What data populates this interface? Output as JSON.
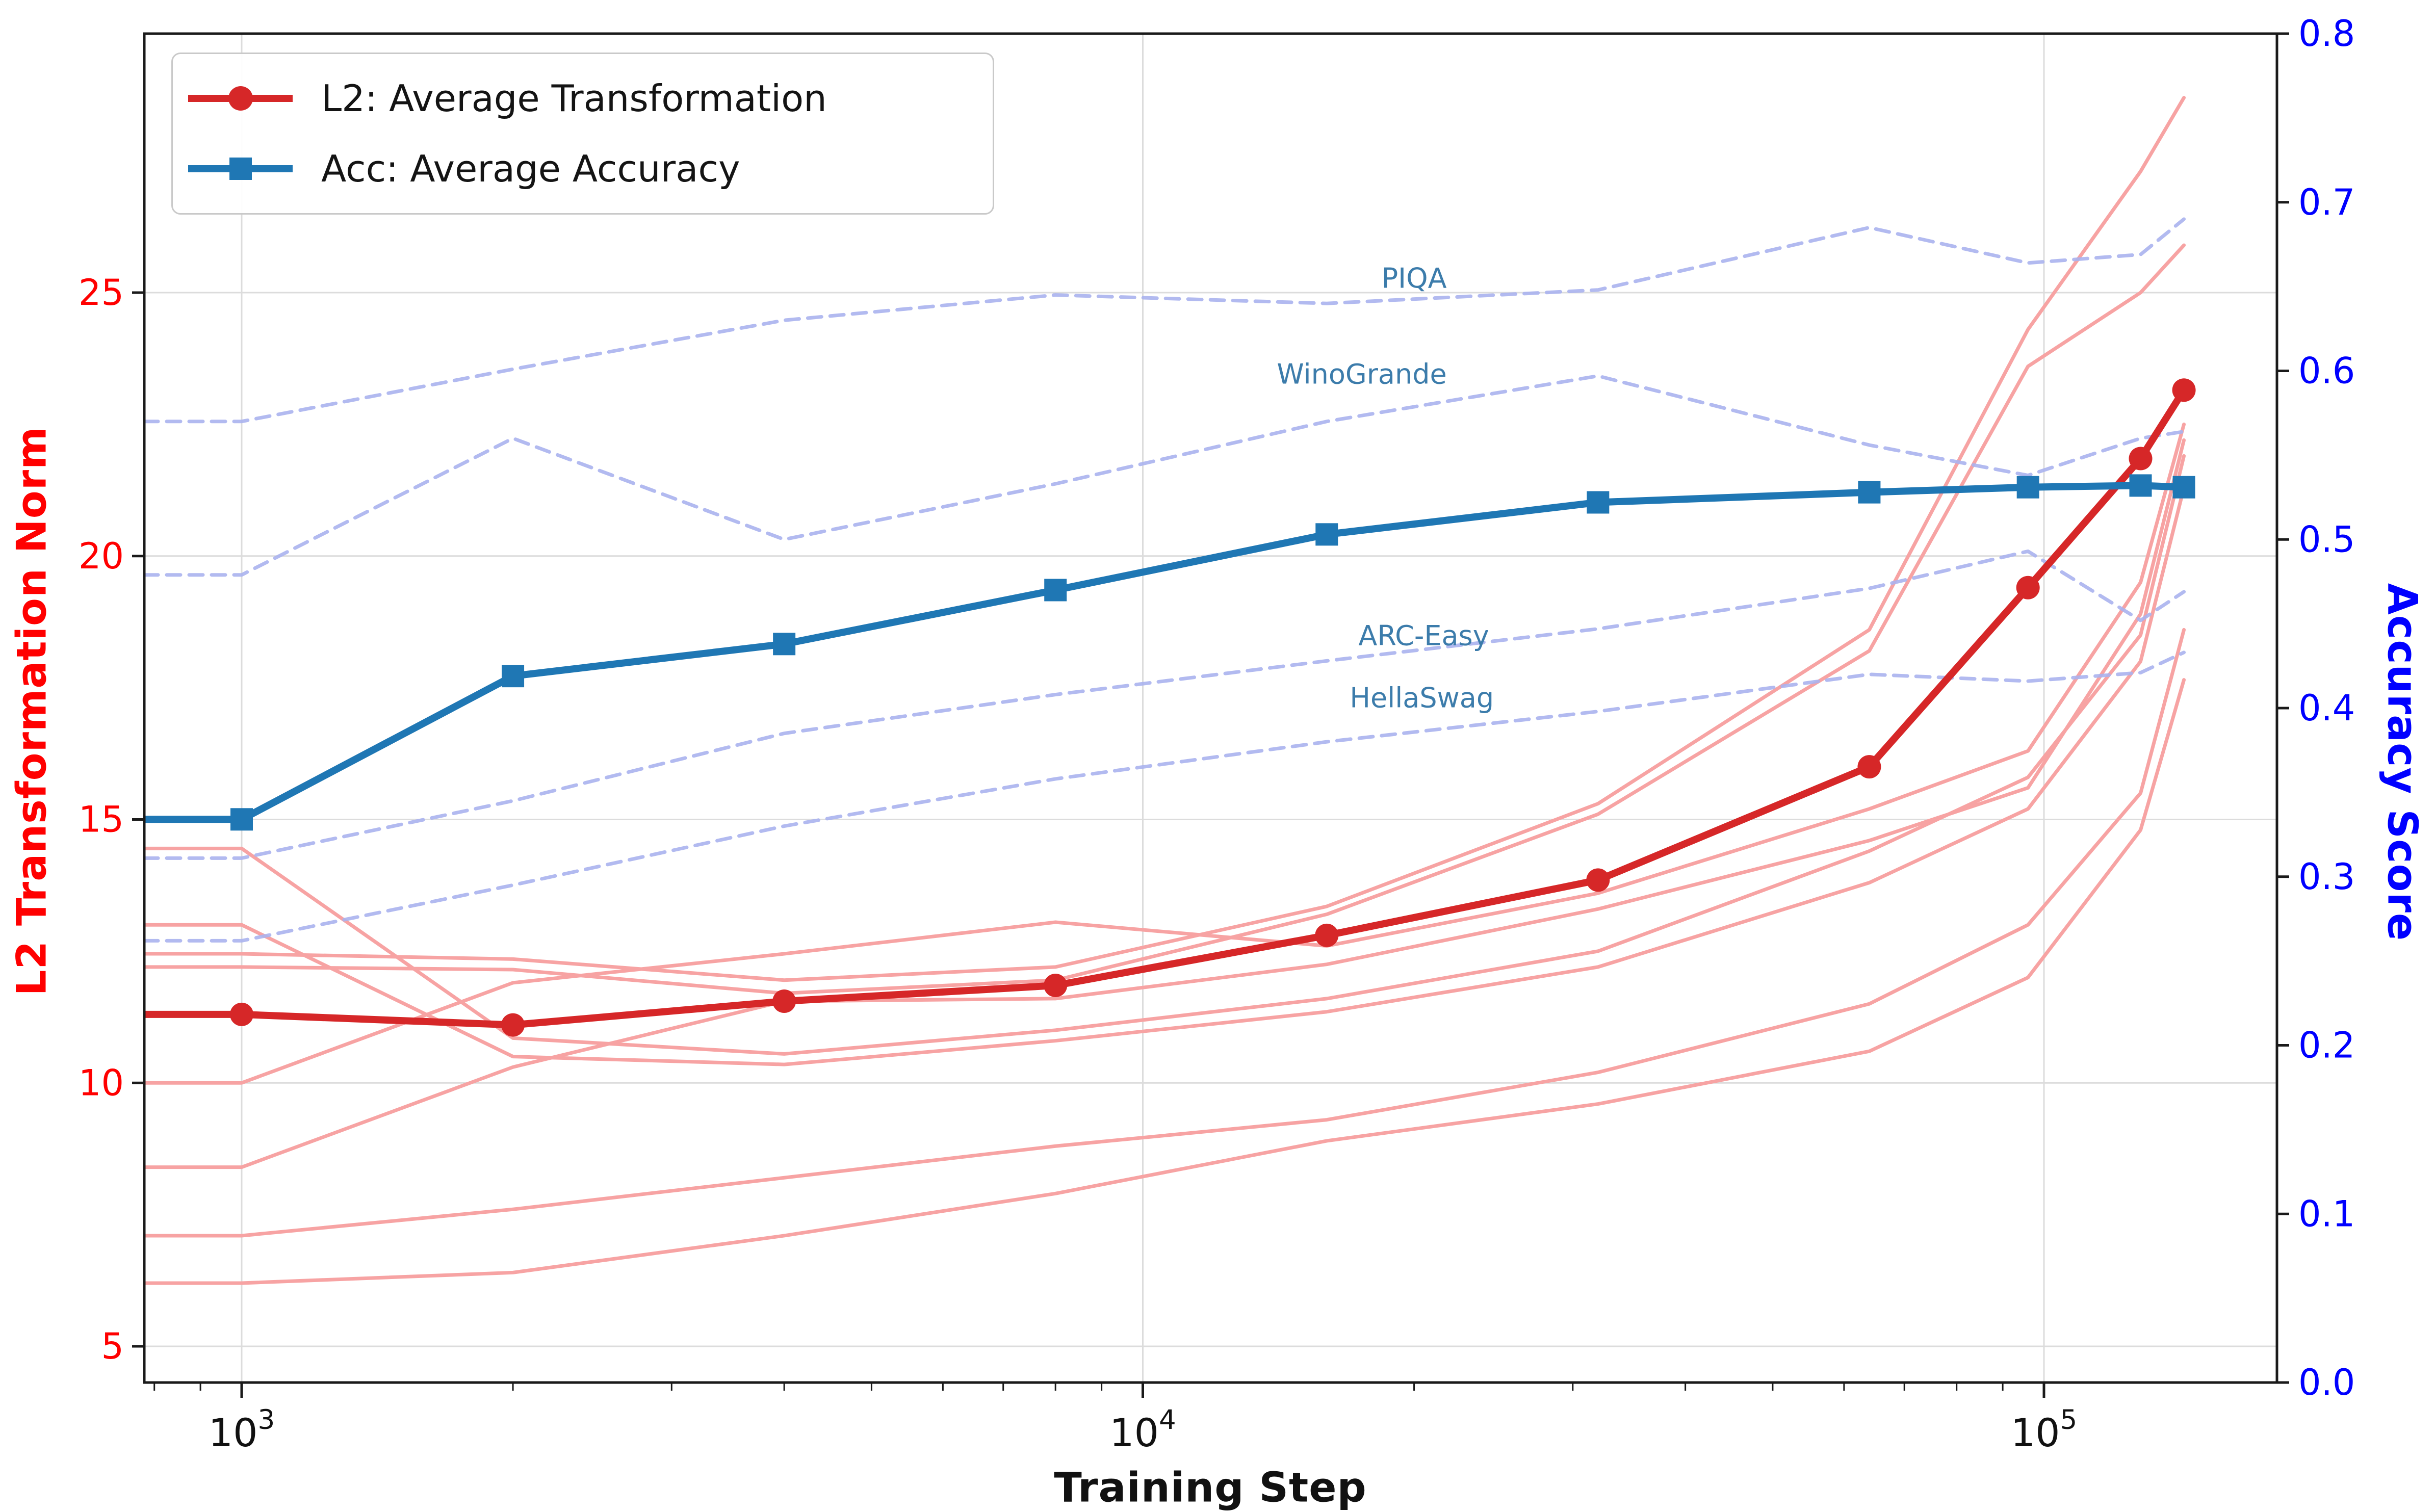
{
  "chart_data": {
    "type": "line",
    "xlabel": "Training Step",
    "ylabel_left": "L2 Transformation Norm",
    "ylabel_right": "Accuracy Score",
    "x_scale": "log",
    "x_major_ticks": [
      {
        "step": 1000,
        "base": "10",
        "exp": "3"
      },
      {
        "step": 10000,
        "base": "10",
        "exp": "4"
      },
      {
        "step": 100000,
        "base": "10",
        "exp": "5"
      }
    ],
    "x_minor_ticks": [
      800,
      900,
      2000,
      3000,
      4000,
      5000,
      6000,
      7000,
      8000,
      9000,
      20000,
      30000,
      40000,
      50000,
      60000,
      70000,
      80000,
      90000
    ],
    "y_left_ticks": [
      5,
      10,
      15,
      20,
      25
    ],
    "y_left_lim": [
      4.3,
      29.9
    ],
    "y_right_ticks": [
      "0.0",
      "0.1",
      "0.2",
      "0.3",
      "0.4",
      "0.5",
      "0.6",
      "0.7",
      "0.8"
    ],
    "y_right_lim": [
      0.0,
      0.8
    ],
    "x_lim_steps": [
      780,
      182000
    ],
    "grid": true,
    "legend_position": "upper left",
    "steps": [
      1000,
      2000,
      4000,
      8000,
      16000,
      32000,
      64000,
      96000,
      128000,
      143000
    ],
    "series": [
      {
        "name": "L2: Average Transformation",
        "axis": "left",
        "style": "solid",
        "marker": "circle",
        "values": [
          11.3,
          11.1,
          11.55,
          11.85,
          12.8,
          13.85,
          16.0,
          19.4,
          21.85,
          23.15
        ]
      },
      {
        "name": "Acc: Average Accuracy",
        "axis": "right",
        "style": "solid",
        "marker": "square",
        "values": [
          0.334,
          0.419,
          0.438,
          0.47,
          0.503,
          0.522,
          0.528,
          0.531,
          0.532,
          0.531
        ]
      },
      {
        "name": "PIQA",
        "axis": "right",
        "style": "dashed",
        "values": [
          0.57,
          0.601,
          0.63,
          0.645,
          0.64,
          0.648,
          0.685,
          0.664,
          0.669,
          0.69
        ],
        "label_at": {
          "step": 20000,
          "acc": 0.655
        }
      },
      {
        "name": "WinoGrande",
        "axis": "right",
        "style": "dashed",
        "values": [
          0.479,
          0.56,
          0.5,
          0.533,
          0.57,
          0.597,
          0.556,
          0.538,
          0.56,
          0.564
        ],
        "label_at": {
          "step": 17500,
          "acc": 0.598
        }
      },
      {
        "name": "ARC-Easy",
        "axis": "right",
        "style": "dashed",
        "values": [
          0.311,
          0.345,
          0.385,
          0.408,
          0.428,
          0.447,
          0.471,
          0.493,
          0.452,
          0.469
        ],
        "label_at": {
          "step": 20500,
          "acc": 0.443
        }
      },
      {
        "name": "HellaSwag",
        "axis": "right",
        "style": "dashed",
        "values": [
          0.262,
          0.295,
          0.33,
          0.358,
          0.38,
          0.398,
          0.42,
          0.416,
          0.421,
          0.433
        ],
        "label_at": {
          "step": 20400,
          "acc": 0.406
        }
      },
      {
        "name": "individual-l2-1",
        "axis": "left",
        "style": "pink",
        "values": [
          14.45,
          10.85,
          10.55,
          11.0,
          11.6,
          12.5,
          14.4,
          15.8,
          18.5,
          21.9
        ]
      },
      {
        "name": "individual-l2-2",
        "axis": "left",
        "style": "pink",
        "values": [
          13.0,
          10.5,
          10.35,
          10.8,
          11.35,
          12.2,
          13.8,
          15.2,
          18.0,
          21.3
        ]
      },
      {
        "name": "individual-l2-3",
        "axis": "left",
        "style": "pink",
        "values": [
          12.45,
          12.35,
          11.95,
          12.2,
          13.35,
          15.3,
          18.6,
          24.3,
          27.3,
          28.7
        ]
      },
      {
        "name": "individual-l2-4",
        "axis": "left",
        "style": "pink",
        "values": [
          12.2,
          12.15,
          11.7,
          11.95,
          13.2,
          15.1,
          18.2,
          23.6,
          25.0,
          25.9
        ]
      },
      {
        "name": "individual-l2-5",
        "axis": "left",
        "style": "pink",
        "values": [
          10.0,
          11.9,
          12.45,
          13.05,
          12.6,
          13.6,
          15.2,
          16.3,
          19.5,
          22.5
        ]
      },
      {
        "name": "individual-l2-6",
        "axis": "left",
        "style": "pink",
        "values": [
          8.4,
          10.3,
          11.55,
          11.6,
          12.25,
          13.3,
          14.6,
          15.6,
          18.9,
          22.2
        ]
      },
      {
        "name": "individual-l2-7",
        "axis": "left",
        "style": "pink",
        "values": [
          7.1,
          7.6,
          8.2,
          8.8,
          9.3,
          10.2,
          11.5,
          13.0,
          15.5,
          18.6
        ]
      },
      {
        "name": "individual-l2-8",
        "axis": "left",
        "style": "pink",
        "values": [
          6.2,
          6.4,
          7.1,
          7.9,
          8.9,
          9.6,
          10.6,
          12.0,
          14.8,
          17.65
        ]
      }
    ],
    "colors": {
      "avg_l2": "#d62728",
      "avg_acc": "#1f77b4",
      "pink": "#f7a3a3",
      "dashed": "#aab2ee",
      "curve_label": "#3c7cab",
      "left_axis": "#ff0000",
      "right_axis": "#0000ff",
      "grid": "#dcdcdc",
      "spine": "#1a1a1a",
      "tick": "#1a1a1a",
      "legend_border": "#c9c9c9"
    }
  }
}
